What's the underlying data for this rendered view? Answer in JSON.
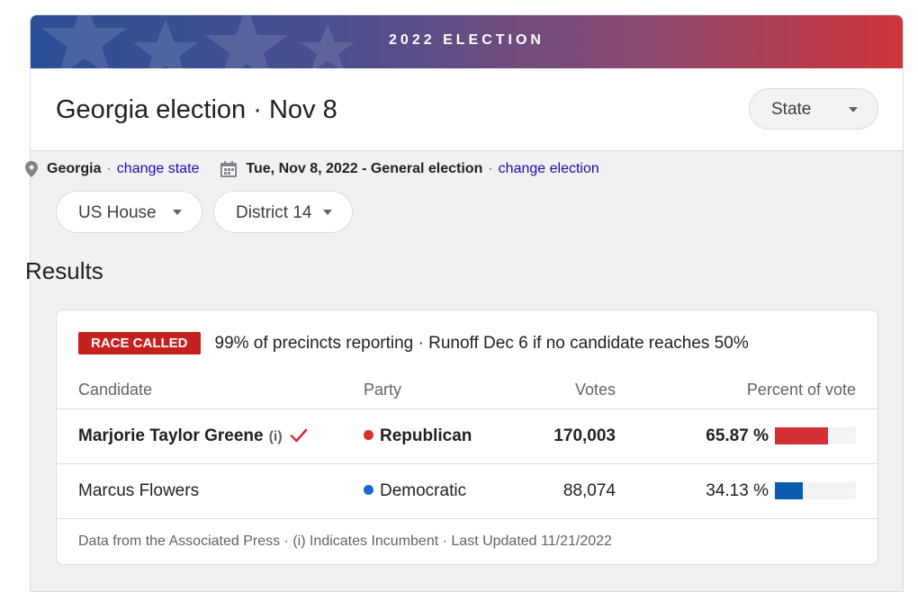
{
  "banner": {
    "title": "2022 ELECTION"
  },
  "header": {
    "title": "Georgia election · Nov 8",
    "level_select": "State"
  },
  "location": {
    "state": "Georgia",
    "change_state": "change state",
    "election": "Tue, Nov 8, 2022 - General election",
    "change_election": "change election",
    "separator": "·"
  },
  "filters": {
    "office": "US House",
    "district": "District 14"
  },
  "results": {
    "heading": "Results",
    "status_badge": "RACE CALLED",
    "status_text": "99% of precincts reporting · Runoff Dec 6 if no candidate reaches 50%",
    "columns": {
      "candidate": "Candidate",
      "party": "Party",
      "votes": "Votes",
      "percent": "Percent of vote"
    },
    "rows": [
      {
        "candidate": "Marjorie Taylor Greene",
        "incumbent_marker": "(i)",
        "party": "Republican",
        "party_color": "#d93025",
        "votes": "170,003",
        "percent_label": "65.87 %",
        "percent": 65.87,
        "bar_color": "#d32f36",
        "winner": true
      },
      {
        "candidate": "Marcus Flowers",
        "party": "Democratic",
        "party_color": "#1967d2",
        "votes": "88,074",
        "percent_label": "34.13 %",
        "percent": 34.13,
        "bar_color": "#0b5cad",
        "winner": false
      }
    ],
    "footnote": "Data from the Associated Press · (i) Indicates Incumbent · Last Updated 11/21/2022"
  },
  "colors": {
    "badge_red": "#c5221f",
    "link_blue": "#1a0dab",
    "check_red": "#d32f36"
  },
  "icons": [
    "location-pin-icon",
    "calendar-icon",
    "chevron-down-icon",
    "checkmark-icon"
  ]
}
